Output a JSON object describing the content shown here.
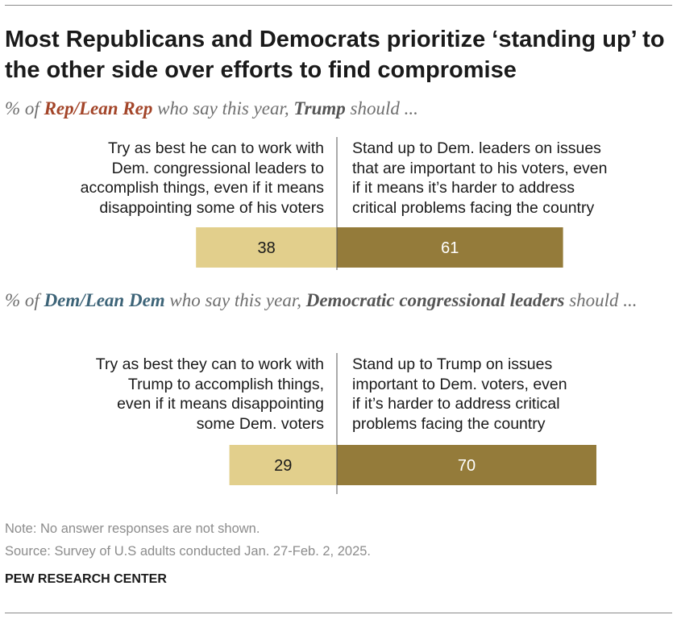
{
  "title": "Most Republicans and Democrats prioritize ‘standing up’ to the other side over efforts to find compromise",
  "panels": [
    {
      "subtitle": {
        "pre": "% of ",
        "group": "Rep/Lean Rep",
        "mid": " who say this year, ",
        "actor": "Trump",
        "post": " should ..."
      },
      "left_lines": [
        "Try as best he can to work with",
        "Dem. congressional leaders to",
        "accomplish things, even if it means",
        "disappointing some of his voters"
      ],
      "right_lines": [
        "Stand up to Dem. leaders on issues",
        "that are important to his voters, even",
        "if it means it’s harder to address",
        "critical problems facing the country"
      ]
    },
    {
      "subtitle": {
        "pre": "% of ",
        "group": "Dem/Lean Dem",
        "mid": " who say this year, ",
        "actor": "Democratic congressional leaders",
        "post": " should ..."
      },
      "left_lines": [
        "Try as best they can to work with",
        "Trump to accomplish things,",
        "even if it means disappointing",
        "some Dem. voters"
      ],
      "right_lines": [
        "Stand up to Trump on issues",
        "important to Dem. voters, even",
        "if it’s harder to address critical",
        "problems facing the country"
      ]
    }
  ],
  "chart_data": [
    {
      "type": "bar",
      "orientation": "horizontal-diverging",
      "title": "% of Rep/Lean Rep who say this year, Trump should ...",
      "categories": [
        "Work with Dem. congressional leaders",
        "Stand up to Dem. leaders"
      ],
      "values": [
        38,
        61
      ],
      "colors": [
        "#e2cf8c",
        "#947b3a"
      ]
    },
    {
      "type": "bar",
      "orientation": "horizontal-diverging",
      "title": "% of Dem/Lean Dem who say this year, Democratic congressional leaders should ...",
      "categories": [
        "Work with Trump",
        "Stand up to Trump"
      ],
      "values": [
        29,
        70
      ],
      "colors": [
        "#e2cf8c",
        "#947b3a"
      ]
    }
  ],
  "colors": {
    "light_bar": "#e2cf8c",
    "dark_bar": "#947b3a",
    "rep": "#a34529",
    "dem": "#3d6478"
  },
  "note": "Note: No answer responses are not shown.",
  "source": "Source: Survey of U.S adults conducted Jan. 27-Feb. 2, 2025.",
  "credit": "PEW RESEARCH CENTER"
}
